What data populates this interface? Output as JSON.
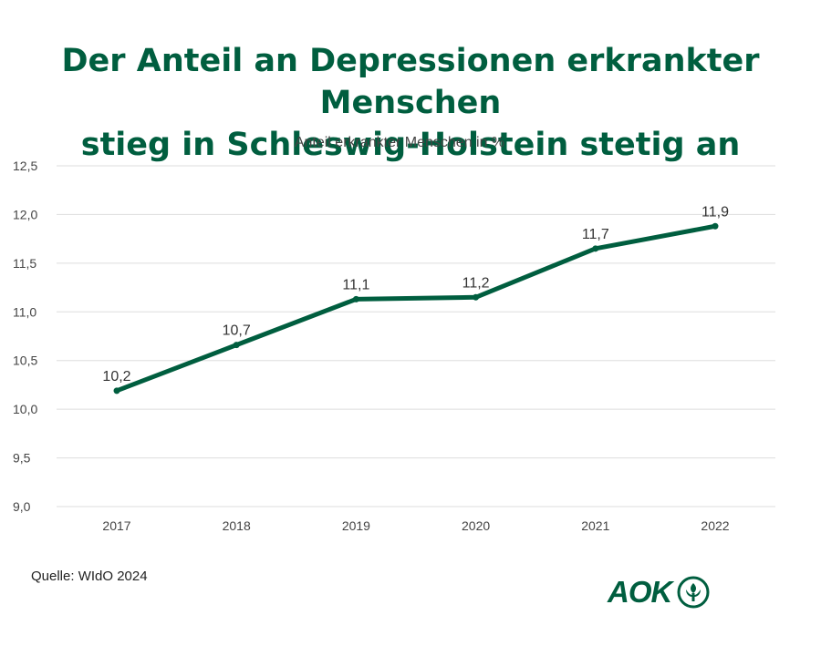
{
  "title": {
    "line1": "Der Anteil an Depressionen erkrankter Menschen",
    "line2": "stieg in Schleswig-Holstein stetig an"
  },
  "source": "Quelle: WIdO 2024",
  "logo": {
    "text": "AOK",
    "icon": "aok-tree-icon"
  },
  "colors": {
    "accent": "#005e3f",
    "grid": "#dddddd",
    "text": "#333333"
  },
  "chart_data": {
    "type": "line",
    "title": "Anteil erkrankter Menschen in %",
    "xlabel": "",
    "ylabel": "",
    "x": [
      "2017",
      "2018",
      "2019",
      "2020",
      "2021",
      "2022"
    ],
    "series": [
      {
        "values": [
          10.19,
          10.66,
          11.13,
          11.15,
          11.65,
          11.88
        ],
        "labels": [
          "10,2",
          "10,7",
          "11,1",
          "11,2",
          "11,7",
          "11,9"
        ]
      }
    ],
    "ylim": [
      9.0,
      12.5
    ],
    "yticks": [
      "9,0",
      "9,5",
      "10,0",
      "10,5",
      "11,0",
      "11,5",
      "12,0",
      "12,5"
    ],
    "grid": true,
    "legend": "none"
  }
}
